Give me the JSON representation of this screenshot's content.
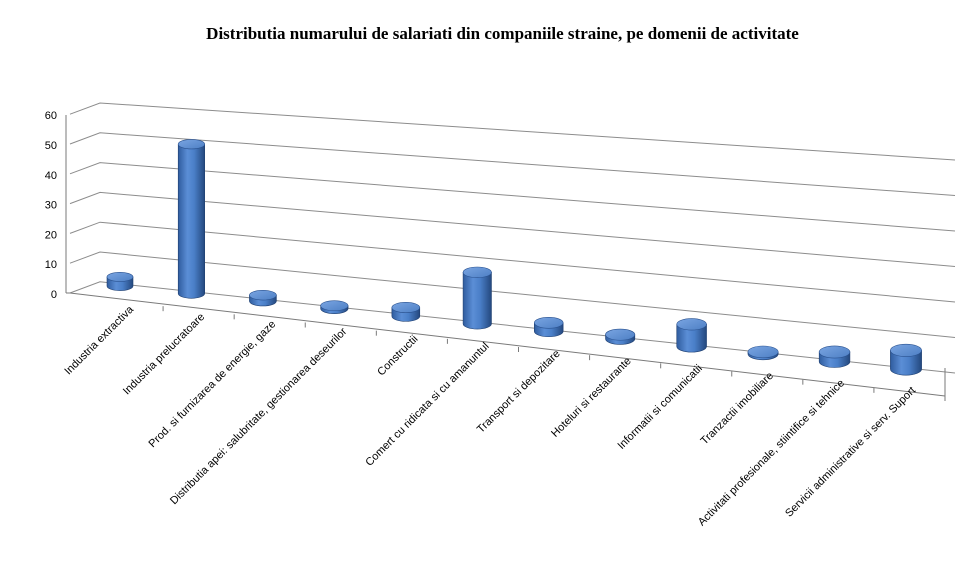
{
  "chart_data": {
    "type": "bar",
    "style": "3d-cylinder",
    "title": "Distributia numarului de salariati  din companiile straine, pe domenii de activitate",
    "xlabel": "",
    "ylabel": "",
    "ylim": [
      0,
      60
    ],
    "yticks": [
      "0",
      "10",
      "20",
      "30",
      "40",
      "50",
      "60"
    ],
    "grid": true,
    "legend": "none",
    "bar_color": "#4a7fc8",
    "categories": [
      "Industria extractiva",
      "Industria prelucratoare",
      "Prod. si furnizarea de energie, gaze",
      "Distributia apei: salubritate, gestionarea deseurilor",
      "Constructii",
      "Comert cu ridicata si cu amanuntul",
      "Transport si depozitare",
      "Hoteluri si restaurante",
      "Informatii si comunicatii",
      "Tranzactii imobiliare",
      "Activitati profesionale, stiintifice si tehnice",
      "Servicii administrative si serv. Suport"
    ],
    "values": [
      3,
      50,
      2,
      1,
      3,
      18,
      3,
      1.5,
      8,
      0.7,
      3.5,
      7
    ]
  }
}
